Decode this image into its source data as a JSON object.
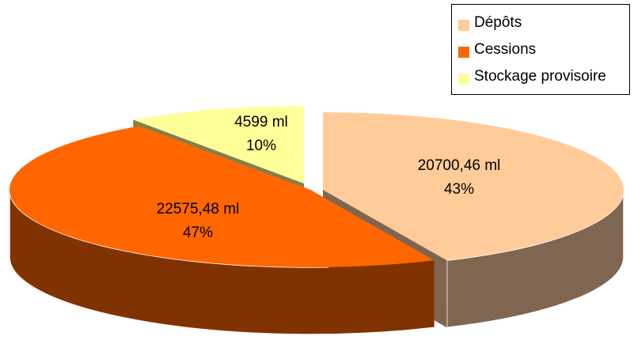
{
  "chart_data": {
    "type": "pie",
    "title": "",
    "unit": "ml",
    "legend_position": "top-right",
    "slices": [
      {
        "name": "Dépôts",
        "value": 20700.46,
        "value_label": "20700,46 ml",
        "percent": 43,
        "percent_label": "43%",
        "color": "#FFCC99",
        "side_color": "#806650"
      },
      {
        "name": "Cessions",
        "value": 22575.48,
        "value_label": "22575,48 ml",
        "percent": 47,
        "percent_label": "47%",
        "color": "#FF6600",
        "side_color": "#803300"
      },
      {
        "name": "Stockage provisoire",
        "value": 4599,
        "value_label": "4599 ml",
        "percent": 10,
        "percent_label": "10%",
        "color": "#FFFF99",
        "side_color": "#80804D"
      }
    ]
  }
}
